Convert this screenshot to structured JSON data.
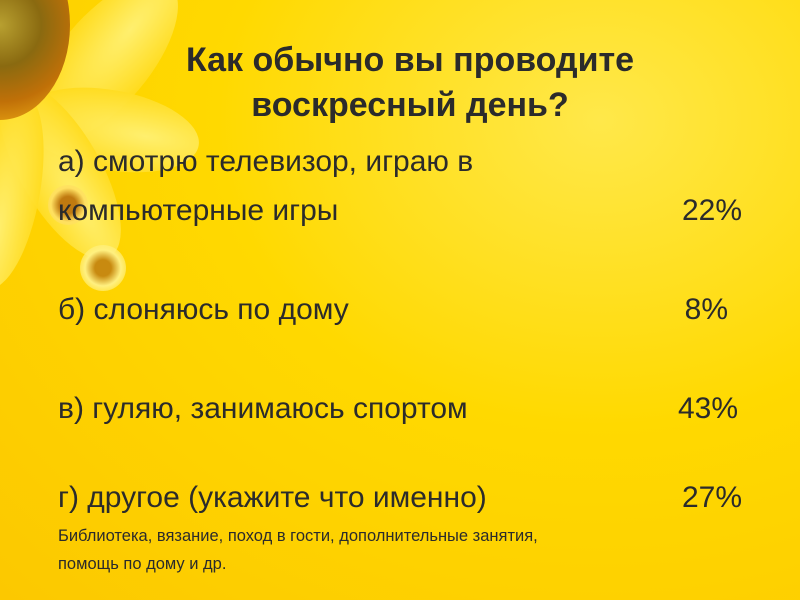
{
  "title": {
    "line1": "Как обычно вы проводите",
    "line2": "воскресный день?"
  },
  "options": [
    {
      "line1": "а) смотрю телевизор, играю в",
      "line2": "компьютерные игры",
      "percent": "22%"
    },
    {
      "label": "б) слоняюсь по дому",
      "percent": "8%"
    },
    {
      "label": "в) гуляю, занимаюсь спортом",
      "percent": "43%"
    },
    {
      "label": "г) другое (укажите что именно)",
      "percent": "27%"
    }
  ],
  "note": {
    "line1": "Библиотека, вязание, поход в гости, дополнительные занятия,",
    "line2": "помощь по дому и др."
  },
  "colors": {
    "background": "#ffd600",
    "text": "#2b2b2b"
  }
}
